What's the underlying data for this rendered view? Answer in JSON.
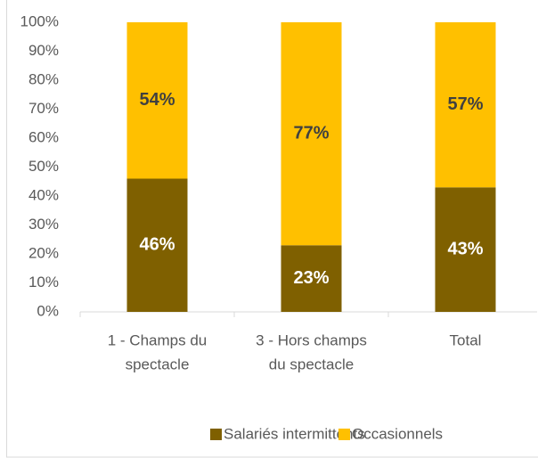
{
  "chart_data": {
    "type": "stacked_bar",
    "categories": [
      [
        "1 - Champs du",
        "spectacle"
      ],
      [
        "3 - Hors champs",
        "du spectacle"
      ],
      [
        "Total"
      ]
    ],
    "series": [
      {
        "name": "Salariés intermittents",
        "color": "#7f6000",
        "values": [
          46,
          23,
          43
        ],
        "value_labels": [
          "46%",
          "23%",
          "43%"
        ]
      },
      {
        "name": "Occasionnels",
        "color": "#ffc000",
        "values": [
          54,
          77,
          57
        ],
        "value_labels": [
          "54%",
          "77%",
          "57%"
        ]
      }
    ],
    "ylim": [
      0,
      100
    ],
    "yticks": [
      {
        "value": 0,
        "label": "0%"
      },
      {
        "value": 10,
        "label": "10%"
      },
      {
        "value": 20,
        "label": "20%"
      },
      {
        "value": 30,
        "label": "30%"
      },
      {
        "value": 40,
        "label": "40%"
      },
      {
        "value": 50,
        "label": "50%"
      },
      {
        "value": 60,
        "label": "60%"
      },
      {
        "value": 70,
        "label": "70%"
      },
      {
        "value": 80,
        "label": "80%"
      },
      {
        "value": 90,
        "label": "90%"
      },
      {
        "value": 100,
        "label": "100%"
      }
    ],
    "grid": false,
    "legend": "bottom"
  }
}
